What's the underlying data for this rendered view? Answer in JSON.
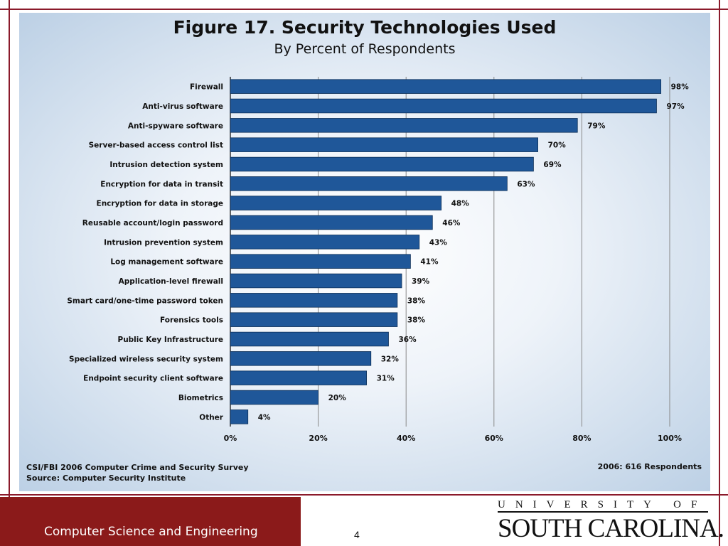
{
  "slide": {
    "department": "Computer Science and Engineering",
    "page_number": "4",
    "logo_top": "UNIVERSITY OF",
    "logo_main": "SOUTH CAROLINA.",
    "colors": {
      "maroon": "#8b1a1a",
      "bar": "#1f5799"
    }
  },
  "figure": {
    "title": "Figure 17. Security Technologies Used",
    "subtitle": "By Percent of Respondents",
    "source_line1": "CSI/FBI 2006 Computer Crime and Security Survey",
    "source_line2": "Source: Computer Security Institute",
    "respondents": "2006: 616 Respondents"
  },
  "chart_data": {
    "type": "bar",
    "orientation": "horizontal",
    "title": "Figure 17. Security Technologies Used",
    "subtitle": "By Percent of Respondents",
    "categories": [
      "Firewall",
      "Anti-virus software",
      "Anti-spyware software",
      "Server-based access control list",
      "Intrusion detection system",
      "Encryption for data in transit",
      "Encryption for data in storage",
      "Reusable account/login password",
      "Intrusion prevention system",
      "Log management software",
      "Application-level firewall",
      "Smart card/one-time password token",
      "Forensics tools",
      "Public Key Infrastructure",
      "Specialized wireless security system",
      "Endpoint security client software",
      "Biometrics",
      "Other"
    ],
    "values": [
      98,
      97,
      79,
      70,
      69,
      63,
      48,
      46,
      43,
      41,
      39,
      38,
      38,
      36,
      32,
      31,
      20,
      4
    ],
    "value_labels": [
      "98%",
      "97%",
      "79%",
      "70%",
      "69%",
      "63%",
      "48%",
      "46%",
      "43%",
      "41%",
      "39%",
      "38%",
      "38%",
      "36%",
      "32%",
      "31%",
      "20%",
      "4%"
    ],
    "xlim": [
      0,
      100
    ],
    "xticks": [
      "0%",
      "20%",
      "40%",
      "60%",
      "80%",
      "100%"
    ],
    "grid": true,
    "bar_color": "#1f5799"
  }
}
